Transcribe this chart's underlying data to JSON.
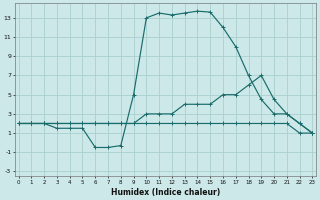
{
  "xlabel": "Humidex (Indice chaleur)",
  "bg_color": "#cce8e8",
  "grid_color": "#aacfcf",
  "line_color": "#1a6b6b",
  "line1_x": [
    0,
    1,
    2,
    3,
    4,
    5,
    6,
    7,
    8,
    9,
    10,
    11,
    12,
    13,
    14,
    15,
    16,
    17,
    18,
    19,
    20,
    21,
    22,
    23
  ],
  "line1_y": [
    2,
    2,
    2,
    2,
    2,
    2,
    2,
    2,
    2,
    2,
    3,
    3,
    3,
    4,
    4,
    4,
    5,
    5,
    6,
    7,
    4.5,
    3,
    2,
    1
  ],
  "line2_x": [
    0,
    1,
    2,
    3,
    4,
    5,
    6,
    7,
    8,
    9,
    10,
    11,
    12,
    13,
    14,
    15,
    16,
    17,
    18,
    19,
    20,
    21,
    22,
    23
  ],
  "line2_y": [
    2,
    2,
    2,
    2,
    2,
    2,
    2,
    2,
    2,
    2,
    2,
    2,
    2,
    2,
    2,
    2,
    2,
    2,
    2,
    2,
    2,
    2,
    1,
    1
  ],
  "line3_x": [
    0,
    1,
    2,
    3,
    4,
    5,
    6,
    7,
    8,
    9,
    10,
    11,
    12,
    13,
    14,
    15,
    16,
    17,
    18,
    19,
    20,
    21,
    22,
    23
  ],
  "line3_y": [
    2,
    2,
    2,
    1.5,
    1.5,
    1.5,
    -0.5,
    -0.5,
    -0.3,
    5,
    13,
    13.5,
    13.3,
    13.5,
    13.7,
    13.6,
    12.0,
    10.0,
    7,
    4.5,
    3,
    3,
    2,
    1
  ],
  "xlim": [
    -0.3,
    23.3
  ],
  "ylim": [
    -3.5,
    14.5
  ],
  "yticks": [
    -3,
    -1,
    1,
    3,
    5,
    7,
    9,
    11,
    13
  ],
  "xticks": [
    0,
    1,
    2,
    3,
    4,
    5,
    6,
    7,
    8,
    9,
    10,
    11,
    12,
    13,
    14,
    15,
    16,
    17,
    18,
    19,
    20,
    21,
    22,
    23
  ]
}
